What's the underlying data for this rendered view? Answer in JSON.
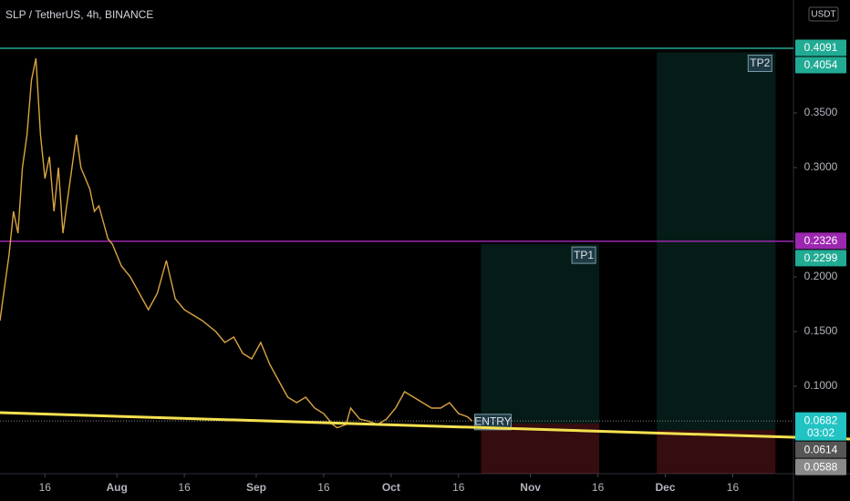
{
  "chart_data": {
    "type": "line",
    "title": "SLP / TetherUS, 4h, BINANCE",
    "y_unit": "USDT",
    "x": [
      5,
      6,
      7,
      8,
      9,
      10,
      11,
      12,
      13,
      14,
      15,
      16,
      17,
      18,
      19,
      20,
      21,
      22,
      23,
      24,
      25,
      26,
      27,
      28,
      29,
      30,
      32,
      34,
      36,
      38,
      40,
      42,
      44,
      46,
      48,
      50,
      53,
      55,
      57,
      59,
      61,
      63,
      65,
      67,
      69,
      71,
      73,
      75,
      77,
      79,
      80,
      82,
      83,
      85,
      87,
      89,
      91,
      93,
      95,
      97,
      99,
      101,
      103,
      105,
      107,
      109,
      110
    ],
    "series": [
      {
        "color": "#d9a441",
        "values": [
          0.16,
          0.19,
          0.22,
          0.26,
          0.24,
          0.3,
          0.33,
          0.38,
          0.4,
          0.33,
          0.29,
          0.31,
          0.26,
          0.3,
          0.24,
          0.27,
          0.3,
          0.33,
          0.3,
          0.29,
          0.28,
          0.26,
          0.265,
          0.25,
          0.235,
          0.23,
          0.21,
          0.2,
          0.185,
          0.17,
          0.185,
          0.215,
          0.18,
          0.17,
          0.165,
          0.16,
          0.15,
          0.14,
          0.145,
          0.13,
          0.125,
          0.14,
          0.12,
          0.105,
          0.09,
          0.085,
          0.09,
          0.08,
          0.075,
          0.065,
          0.062,
          0.065,
          0.08,
          0.07,
          0.068,
          0.065,
          0.07,
          0.08,
          0.095,
          0.09,
          0.085,
          0.08,
          0.08,
          0.085,
          0.075,
          0.072,
          0.0682
        ]
      }
    ],
    "xlim": [
      5,
      181.5
    ],
    "ylim": [
      0.02,
      0.4533
    ],
    "xticks": [
      {
        "value": 15,
        "label": "16"
      },
      {
        "value": 31,
        "label": "Aug"
      },
      {
        "value": 46,
        "label": "16"
      },
      {
        "value": 62,
        "label": "Sep"
      },
      {
        "value": 77,
        "label": "16"
      },
      {
        "value": 92,
        "label": "Oct"
      },
      {
        "value": 107,
        "label": "16"
      },
      {
        "value": 123,
        "label": "Nov"
      },
      {
        "value": 138,
        "label": "16"
      },
      {
        "value": 153,
        "label": "Dec"
      },
      {
        "value": 168,
        "label": "16"
      }
    ],
    "yticks": [
      {
        "value": 0.1,
        "label": "0.1000"
      },
      {
        "value": 0.15,
        "label": "0.1500"
      },
      {
        "value": 0.2,
        "label": "0.2000"
      },
      {
        "value": 0.3,
        "label": "0.3000"
      },
      {
        "value": 0.35,
        "label": "0.3500"
      }
    ],
    "grid": false,
    "trendline": {
      "x": [
        5,
        181.5
      ],
      "values": [
        0.0758,
        0.0533
      ],
      "color": "#f5e050"
    },
    "levels": [
      {
        "value": 0.4091,
        "color": "#22ab94",
        "line": true
      },
      {
        "value": 0.2326,
        "color": "#9c27b0",
        "line": true
      },
      {
        "value": 0.0614,
        "color": "#555555",
        "line": false
      },
      {
        "value": 0.0588,
        "color": "#8a8a8a",
        "line": false
      }
    ],
    "last_price": {
      "value": 0.0682,
      "countdown": "03:02",
      "color": "#22c3c3"
    },
    "positions": [
      {
        "label": "TP1",
        "note": "ENTRY",
        "start": 112,
        "end": 138.3,
        "target": 0.2299,
        "entry": 0.066,
        "stop": 0.02
      },
      {
        "label": "TP2",
        "start": 151.1,
        "end": 177.5,
        "target": 0.4054,
        "entry": 0.06,
        "stop": 0.02
      }
    ]
  }
}
